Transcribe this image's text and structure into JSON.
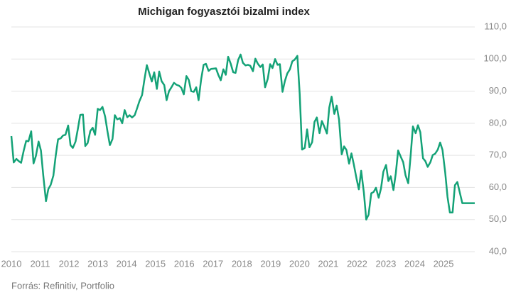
{
  "chart_data": {
    "type": "line",
    "title": "Michigan fogyasztói bizalmi index",
    "source": "Forrás: Refinitiv, Portfolio",
    "x": [
      2010.0,
      2010.08,
      2010.17,
      2010.25,
      2010.33,
      2010.42,
      2010.5,
      2010.58,
      2010.67,
      2010.75,
      2010.83,
      2010.92,
      2011.0,
      2011.08,
      2011.17,
      2011.25,
      2011.33,
      2011.42,
      2011.5,
      2011.58,
      2011.67,
      2011.75,
      2011.83,
      2011.92,
      2012.0,
      2012.08,
      2012.17,
      2012.25,
      2012.33,
      2012.42,
      2012.5,
      2012.58,
      2012.67,
      2012.75,
      2012.83,
      2012.92,
      2013.0,
      2013.08,
      2013.17,
      2013.25,
      2013.33,
      2013.42,
      2013.5,
      2013.58,
      2013.67,
      2013.75,
      2013.83,
      2013.92,
      2014.0,
      2014.08,
      2014.17,
      2014.25,
      2014.33,
      2014.42,
      2014.5,
      2014.58,
      2014.67,
      2014.75,
      2014.83,
      2014.92,
      2015.0,
      2015.08,
      2015.17,
      2015.25,
      2015.33,
      2015.42,
      2015.5,
      2015.58,
      2015.67,
      2015.75,
      2015.83,
      2015.92,
      2016.0,
      2016.08,
      2016.17,
      2016.25,
      2016.33,
      2016.42,
      2016.5,
      2016.58,
      2016.67,
      2016.75,
      2016.83,
      2016.92,
      2017.0,
      2017.08,
      2017.17,
      2017.25,
      2017.33,
      2017.42,
      2017.5,
      2017.58,
      2017.67,
      2017.75,
      2017.83,
      2017.92,
      2018.0,
      2018.08,
      2018.17,
      2018.25,
      2018.33,
      2018.42,
      2018.5,
      2018.58,
      2018.67,
      2018.75,
      2018.83,
      2018.92,
      2019.0,
      2019.08,
      2019.17,
      2019.25,
      2019.33,
      2019.42,
      2019.5,
      2019.58,
      2019.67,
      2019.75,
      2019.83,
      2019.92,
      2020.0,
      2020.08,
      2020.17,
      2020.25,
      2020.33,
      2020.42,
      2020.5,
      2020.58,
      2020.67,
      2020.75,
      2020.83,
      2020.92,
      2021.0,
      2021.08,
      2021.17,
      2021.25,
      2021.33,
      2021.42,
      2021.5,
      2021.58,
      2021.67,
      2021.75,
      2021.83,
      2021.92,
      2022.0,
      2022.08,
      2022.17,
      2022.25,
      2022.33,
      2022.42,
      2022.5,
      2022.58,
      2022.67,
      2022.75,
      2022.83,
      2022.92,
      2023.0,
      2023.08,
      2023.17,
      2023.25,
      2023.33,
      2023.42,
      2023.5,
      2023.58,
      2023.67,
      2023.75,
      2023.83,
      2023.92,
      2024.0,
      2024.08,
      2024.17,
      2024.25,
      2024.33,
      2024.42,
      2024.5,
      2024.58,
      2024.67,
      2024.75,
      2024.83,
      2024.92,
      2025.0,
      2025.08,
      2025.17,
      2025.25,
      2025.33,
      2025.42,
      2025.5,
      2025.58,
      2025.67
    ],
    "series": [
      {
        "color": "#14a277",
        "values": [
          76.0,
          67.8,
          68.9,
          68.2,
          67.7,
          71.6,
          74.5,
          74.4,
          77.5,
          67.5,
          69.8,
          74.3,
          71.5,
          63.7,
          55.7,
          59.5,
          60.8,
          63.7,
          69.9,
          75.0,
          75.3,
          76.2,
          76.4,
          79.3,
          73.2,
          72.3,
          74.3,
          78.3,
          82.6,
          82.7,
          72.9,
          73.8,
          77.6,
          78.6,
          76.4,
          84.5,
          84.1,
          85.1,
          82.1,
          77.5,
          73.2,
          75.1,
          82.5,
          81.2,
          81.6,
          80.0,
          84.1,
          81.9,
          82.5,
          81.8,
          82.5,
          84.6,
          86.9,
          88.8,
          93.6,
          98.1,
          95.4,
          93.0,
          95.9,
          90.7,
          96.1,
          93.1,
          91.9,
          87.2,
          90.0,
          91.3,
          92.6,
          92.0,
          91.7,
          91.0,
          89.0,
          94.7,
          93.5,
          90.0,
          89.8,
          91.2,
          87.2,
          93.8,
          98.2,
          98.5,
          96.3,
          96.9,
          97.0,
          97.1,
          95.0,
          93.4,
          96.8,
          95.1,
          100.7,
          98.5,
          95.9,
          95.7,
          99.7,
          101.4,
          98.8,
          98.0,
          98.2,
          97.9,
          96.2,
          100.1,
          98.6,
          97.5,
          98.3,
          91.2,
          93.8,
          98.4,
          97.2,
          100.0,
          98.2,
          98.4,
          89.8,
          93.2,
          95.5,
          96.8,
          99.3,
          99.8,
          101.0,
          89.1,
          71.8,
          72.3,
          78.1,
          72.5,
          74.1,
          80.4,
          81.8,
          76.9,
          80.7,
          79.0,
          76.8,
          84.9,
          88.3,
          82.9,
          85.5,
          81.2,
          70.3,
          72.8,
          71.7,
          67.4,
          70.6,
          67.2,
          62.8,
          59.4,
          65.2,
          58.4,
          50.0,
          51.5,
          58.2,
          58.6,
          59.9,
          56.8,
          59.7,
          64.9,
          67.0,
          62.0,
          63.5,
          59.2,
          64.4,
          71.5,
          69.5,
          67.9,
          63.8,
          61.3,
          69.7,
          79.0,
          76.9,
          79.4,
          77.2,
          69.1,
          68.2,
          66.4,
          67.9,
          70.1,
          70.5,
          71.8,
          74.0,
          71.7,
          64.7,
          57.0,
          52.2,
          52.2,
          60.7,
          61.7,
          58.2,
          55.1,
          55.1,
          55.1,
          55.1,
          55.1,
          55.1
        ]
      }
    ],
    "xlim": [
      2010,
      2025.67
    ],
    "xticks": [
      2010,
      2011,
      2012,
      2013,
      2014,
      2015,
      2016,
      2017,
      2018,
      2019,
      2020,
      2021,
      2022,
      2023,
      2024,
      2025
    ],
    "ylim": [
      40,
      110
    ],
    "yticks": [
      {
        "value": 40,
        "label": "40,0"
      },
      {
        "value": 50,
        "label": "50,0"
      },
      {
        "value": 60,
        "label": "60,0"
      },
      {
        "value": 70,
        "label": "70,0"
      },
      {
        "value": 80,
        "label": "80,0"
      },
      {
        "value": 90,
        "label": "90,0"
      },
      {
        "value": 100,
        "label": "100,0"
      },
      {
        "value": 110,
        "label": "110,0"
      }
    ],
    "grid": true
  }
}
